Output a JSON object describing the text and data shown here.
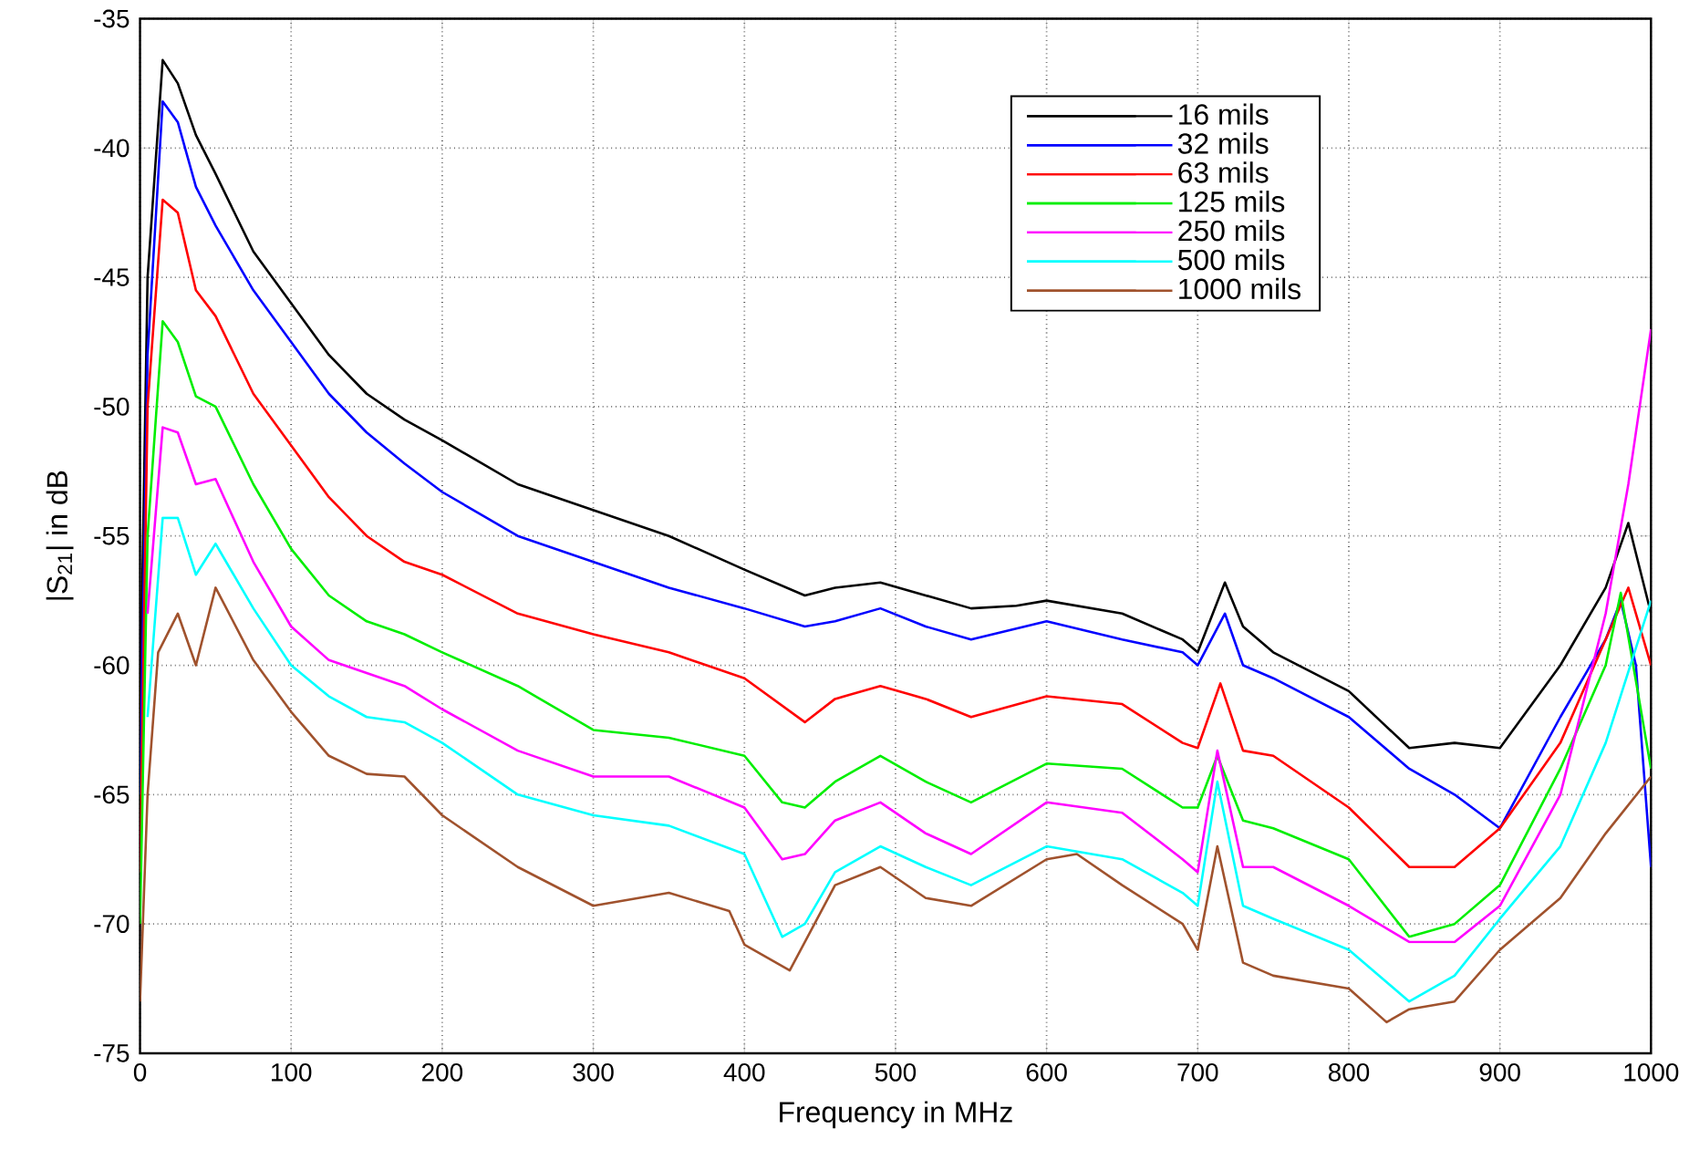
{
  "chart_data": {
    "type": "line",
    "xlabel": "Frequency in MHz",
    "ylabel": "|S$_{21}$| in dB",
    "xlim": [
      0,
      1000
    ],
    "ylim": [
      -75,
      -35
    ],
    "xticks": [
      0,
      100,
      200,
      300,
      400,
      500,
      600,
      700,
      800,
      900,
      1000
    ],
    "yticks": [
      -75,
      -70,
      -65,
      -60,
      -55,
      -50,
      -45,
      -40,
      -35
    ],
    "grid": true,
    "legend": "top right",
    "marker": "none",
    "line_style": "solid",
    "series": [
      {
        "name": "16 mils",
        "color": "#000000",
        "x": [
          0,
          5,
          15,
          25,
          37,
          50,
          75,
          100,
          125,
          150,
          175,
          200,
          250,
          300,
          350,
          400,
          440,
          460,
          490,
          520,
          550,
          580,
          600,
          650,
          690,
          700,
          718,
          730,
          750,
          800,
          840,
          870,
          900,
          940,
          970,
          985,
          1000
        ],
        "values": [
          -62,
          -45,
          -36.6,
          -37.5,
          -39.5,
          -41,
          -44,
          -46,
          -48,
          -49.5,
          -50.5,
          -51.3,
          -53,
          -54,
          -55,
          -56.3,
          -57.3,
          -57,
          -56.8,
          -57.3,
          -57.8,
          -57.7,
          -57.5,
          -58,
          -59,
          -59.5,
          -56.8,
          -58.5,
          -59.5,
          -61,
          -63.2,
          -63,
          -63.2,
          -60,
          -57,
          -54.5,
          -58
        ]
      },
      {
        "name": "32 mils",
        "color": "#0000ff",
        "x": [
          0,
          5,
          15,
          25,
          37,
          50,
          75,
          100,
          125,
          150,
          175,
          200,
          250,
          300,
          350,
          400,
          440,
          460,
          490,
          520,
          550,
          600,
          650,
          690,
          700,
          718,
          730,
          750,
          800,
          840,
          870,
          900,
          940,
          970,
          980,
          990,
          1000
        ],
        "values": [
          -65,
          -48,
          -38.2,
          -39,
          -41.5,
          -43,
          -45.5,
          -47.5,
          -49.5,
          -51,
          -52.2,
          -53.3,
          -55,
          -56,
          -57,
          -57.8,
          -58.5,
          -58.3,
          -57.8,
          -58.5,
          -59,
          -58.3,
          -59,
          -59.5,
          -60,
          -58,
          -60,
          -60.5,
          -62,
          -64,
          -65,
          -66.3,
          -62,
          -59,
          -57.5,
          -60,
          -67.8
        ]
      },
      {
        "name": "63 mils",
        "color": "#ff0000",
        "x": [
          0,
          5,
          15,
          25,
          37,
          50,
          75,
          100,
          125,
          150,
          175,
          200,
          250,
          300,
          350,
          400,
          440,
          460,
          490,
          520,
          550,
          600,
          650,
          690,
          700,
          715,
          730,
          750,
          800,
          840,
          870,
          900,
          940,
          970,
          985,
          1000
        ],
        "values": [
          -68,
          -50,
          -42,
          -42.5,
          -45.5,
          -46.5,
          -49.5,
          -51.5,
          -53.5,
          -55,
          -56,
          -56.5,
          -58,
          -58.8,
          -59.5,
          -60.5,
          -62.2,
          -61.3,
          -60.8,
          -61.3,
          -62,
          -61.2,
          -61.5,
          -63,
          -63.2,
          -60.7,
          -63.3,
          -63.5,
          -65.5,
          -67.8,
          -67.8,
          -66.3,
          -63,
          -59,
          -57,
          -60
        ]
      },
      {
        "name": "125 mils",
        "color": "#00ee00",
        "x": [
          0,
          5,
          15,
          25,
          37,
          50,
          75,
          100,
          125,
          150,
          175,
          200,
          250,
          300,
          350,
          400,
          425,
          440,
          460,
          490,
          520,
          550,
          600,
          650,
          690,
          700,
          713,
          730,
          750,
          800,
          840,
          870,
          900,
          940,
          970,
          980,
          1000
        ],
        "values": [
          -70,
          -55,
          -46.7,
          -47.5,
          -49.6,
          -50,
          -53,
          -55.5,
          -57.3,
          -58.3,
          -58.8,
          -59.5,
          -60.8,
          -62.5,
          -62.8,
          -63.5,
          -65.3,
          -65.5,
          -64.5,
          -63.5,
          -64.5,
          -65.3,
          -63.8,
          -64,
          -65.5,
          -65.5,
          -63.5,
          -66,
          -66.3,
          -67.5,
          -70.5,
          -70,
          -68.5,
          -64,
          -60,
          -57.2,
          -64
        ]
      },
      {
        "name": "250 mils",
        "color": "#ff00ff",
        "x": [
          5,
          15,
          25,
          37,
          50,
          75,
          100,
          125,
          150,
          175,
          200,
          250,
          300,
          350,
          400,
          425,
          440,
          460,
          490,
          520,
          550,
          600,
          650,
          690,
          700,
          713,
          730,
          750,
          800,
          840,
          870,
          900,
          940,
          970,
          985,
          1000
        ],
        "values": [
          -58,
          -50.8,
          -51,
          -53,
          -52.8,
          -56,
          -58.5,
          -59.8,
          -60.3,
          -60.8,
          -61.7,
          -63.3,
          -64.3,
          -64.3,
          -65.5,
          -67.5,
          -67.3,
          -66,
          -65.3,
          -66.5,
          -67.3,
          -65.3,
          -65.7,
          -67.5,
          -68,
          -63.3,
          -67.8,
          -67.8,
          -69.3,
          -70.7,
          -70.7,
          -69.3,
          -65,
          -58,
          -53,
          -47
        ]
      },
      {
        "name": "500 mils",
        "color": "#00ffff",
        "x": [
          5,
          15,
          25,
          37,
          50,
          75,
          100,
          125,
          150,
          175,
          200,
          250,
          300,
          350,
          400,
          425,
          440,
          460,
          490,
          520,
          550,
          600,
          650,
          690,
          700,
          713,
          730,
          750,
          800,
          840,
          870,
          900,
          940,
          970,
          1000
        ],
        "values": [
          -62,
          -54.3,
          -54.3,
          -56.5,
          -55.3,
          -57.8,
          -60,
          -61.2,
          -62,
          -62.2,
          -63,
          -65,
          -65.8,
          -66.2,
          -67.3,
          -70.5,
          -70,
          -68,
          -67,
          -67.8,
          -68.5,
          -67,
          -67.5,
          -68.8,
          -69.3,
          -64.5,
          -69.3,
          -69.8,
          -71,
          -73,
          -72,
          -69.8,
          -67,
          -63,
          -57.5
        ]
      },
      {
        "name": "1000 mils",
        "color": "#a0522d",
        "x": [
          0,
          5,
          12,
          25,
          37,
          50,
          75,
          100,
          125,
          150,
          175,
          200,
          250,
          300,
          350,
          390,
          400,
          430,
          460,
          490,
          520,
          550,
          600,
          620,
          650,
          690,
          700,
          713,
          730,
          750,
          800,
          825,
          840,
          870,
          900,
          940,
          970,
          1000
        ],
        "values": [
          -73,
          -65,
          -59.5,
          -58,
          -60,
          -57,
          -59.8,
          -61.8,
          -63.5,
          -64.2,
          -64.3,
          -65.8,
          -67.8,
          -69.3,
          -68.8,
          -69.5,
          -70.8,
          -71.8,
          -68.5,
          -67.8,
          -69,
          -69.3,
          -67.5,
          -67.3,
          -68.5,
          -70,
          -71,
          -67,
          -71.5,
          -72,
          -72.5,
          -73.8,
          -73.3,
          -73,
          -71,
          -69,
          -66.5,
          -64.3
        ]
      }
    ]
  }
}
